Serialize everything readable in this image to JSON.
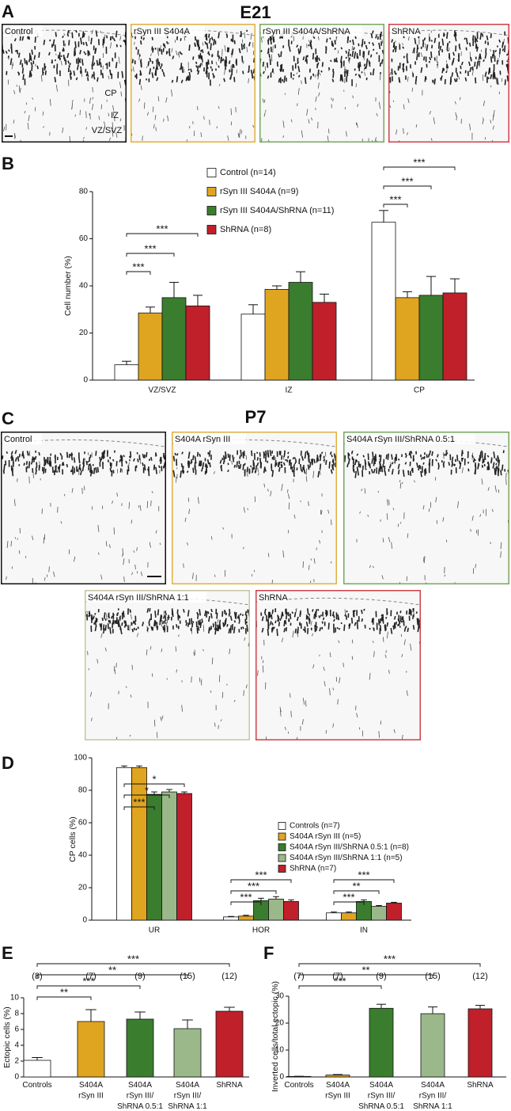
{
  "image_panels": [
    {
      "panel": "A",
      "title": "E21",
      "images": [
        {
          "label": "Control"
        },
        {
          "label": "rSyn III S404A"
        },
        {
          "label": "rSyn III S404A/ShRNA"
        },
        {
          "label": "ShRNA"
        }
      ],
      "region_labels": [
        "CP",
        "IZ",
        "VZ/SVZ"
      ]
    },
    {
      "panel": "C",
      "title": "P7",
      "images": [
        {
          "label": "Control"
        },
        {
          "label": "S404A rSyn III"
        },
        {
          "label": "S404A rSyn III/ShRNA 0.5:1"
        },
        {
          "label": "S404A rSyn III/ShRNA 1:1"
        },
        {
          "label": "ShRNA"
        }
      ]
    }
  ],
  "chart_data": [
    {
      "type": "bar",
      "panel": "B",
      "y_label": "Cell number (%)",
      "categories": [
        "VZ/SVZ",
        "IZ",
        "CP"
      ],
      "series": [
        {
          "name": "Control (n=14)",
          "color": "#ffffff",
          "values": [
            6.5,
            28,
            67
          ],
          "errors": [
            1.5,
            4,
            5
          ]
        },
        {
          "name": "rSyn III S404A (n=9)",
          "color": "#e0a520",
          "values": [
            28.5,
            38.5,
            35
          ],
          "errors": [
            2.5,
            1.5,
            2.5
          ]
        },
        {
          "name": "rSyn III S404A/ShRNA (n=11)",
          "color": "#3a7d2e",
          "values": [
            35,
            41.5,
            36
          ],
          "errors": [
            6.5,
            4.5,
            8
          ]
        },
        {
          "name": "ShRNA (n=8)",
          "color": "#c0202a",
          "values": [
            31.5,
            33,
            37
          ],
          "errors": [
            4.5,
            3.5,
            6
          ]
        }
      ],
      "ylim": [
        0,
        80
      ],
      "yticks": [
        0,
        20,
        40,
        60,
        80
      ],
      "brackets": [
        {
          "label": "***",
          "group": 0,
          "from": 0,
          "to": 1
        },
        {
          "label": "***",
          "group": 0,
          "from": 0,
          "to": 2
        },
        {
          "label": "***",
          "group": 0,
          "from": 0,
          "to": 3
        },
        {
          "label": "***",
          "group": 2,
          "from": 0,
          "to": 1
        },
        {
          "label": "***",
          "group": 2,
          "from": 0,
          "to": 2
        },
        {
          "label": "***",
          "group": 2,
          "from": 0,
          "to": 3
        }
      ]
    },
    {
      "type": "bar",
      "panel": "D",
      "y_label": "CP cells (%)",
      "categories": [
        "UR",
        "HOR",
        "IN"
      ],
      "series": [
        {
          "name": "Controls (n=7)",
          "color": "#ffffff",
          "values": [
            94,
            2,
            4.5
          ],
          "errors": [
            1,
            0.3,
            0.5
          ]
        },
        {
          "name": "S404A rSyn III (n=5)",
          "color": "#e0a520",
          "values": [
            94,
            2.5,
            4.5
          ],
          "errors": [
            1,
            0.5,
            0.5
          ]
        },
        {
          "name": "S404A rSyn III/ShRNA 0.5:1 (n=8)",
          "color": "#3a7d2e",
          "values": [
            77.5,
            12,
            11.5
          ],
          "errors": [
            1.5,
            1.5,
            1
          ]
        },
        {
          "name": "S404A rSyn III/ShRNA 1:1 (n=5)",
          "color": "#9bb88a",
          "values": [
            79,
            13,
            8.5
          ],
          "errors": [
            1.5,
            1.5,
            0.5
          ]
        },
        {
          "name": "ShRNA (n=7)",
          "color": "#c0202a",
          "values": [
            78,
            11.5,
            10.5
          ],
          "errors": [
            1,
            1,
            0.5
          ]
        }
      ],
      "ylim": [
        0,
        100
      ],
      "yticks": [
        0,
        20,
        40,
        60,
        80,
        100
      ],
      "brackets": [
        {
          "label": "***",
          "group": 0,
          "from": 0,
          "to": 2
        },
        {
          "label": "*",
          "group": 0,
          "from": 0,
          "to": 3
        },
        {
          "label": "*",
          "group": 0,
          "from": 0,
          "to": 4
        },
        {
          "label": "***",
          "group": 1,
          "from": 0,
          "to": 2
        },
        {
          "label": "***",
          "group": 1,
          "from": 0,
          "to": 3
        },
        {
          "label": "***",
          "group": 1,
          "from": 0,
          "to": 4
        },
        {
          "label": "***",
          "group": 2,
          "from": 0,
          "to": 2
        },
        {
          "label": "**",
          "group": 2,
          "from": 0,
          "to": 3
        },
        {
          "label": "***",
          "group": 2,
          "from": 0,
          "to": 4
        }
      ]
    },
    {
      "type": "bar",
      "panel": "E",
      "y_label": "Ectopic cells (%)",
      "categories": [
        [
          "Controls"
        ],
        [
          "S404A",
          "rSyn III"
        ],
        [
          "S404A",
          "rSyn III/",
          "ShRNA 0.5:1"
        ],
        [
          "S404A",
          "rSyn III/",
          "ShRNA 1:1"
        ],
        [
          "ShRNA"
        ]
      ],
      "n_labels": [
        "(8)",
        "(7)",
        "(9)",
        "(15)",
        "(12)"
      ],
      "colors": [
        "#ffffff",
        "#e0a520",
        "#3a7d2e",
        "#9bb88a",
        "#c0202a"
      ],
      "values": [
        2.1,
        7,
        7.3,
        6.1,
        8.3
      ],
      "errors": [
        0.35,
        1.5,
        0.9,
        1.1,
        0.5
      ],
      "ylim": [
        0,
        10
      ],
      "yticks": [
        0,
        2,
        4,
        6,
        8,
        10
      ],
      "brackets": [
        {
          "label": "**",
          "from": 0,
          "to": 1
        },
        {
          "label": "***",
          "from": 0,
          "to": 2
        },
        {
          "label": "**",
          "from": 0,
          "to": 3
        },
        {
          "label": "***",
          "from": 0,
          "to": 4
        }
      ]
    },
    {
      "type": "bar",
      "panel": "F",
      "y_label": "Inverted cells/total ectopic (%)",
      "categories": [
        [
          "Controls"
        ],
        [
          "S404A",
          "rSyn III"
        ],
        [
          "S404A",
          "rSyn III/",
          "ShRNA 0.5:1"
        ],
        [
          "S404A",
          "rSyn III/",
          "ShRNA 1:1"
        ],
        [
          "ShRNA"
        ]
      ],
      "n_labels": [
        "(7)",
        "(7)",
        "(9)",
        "(15)",
        "(12)"
      ],
      "colors": [
        "#ffffff",
        "#e0a520",
        "#3a7d2e",
        "#9bb88a",
        "#c0202a"
      ],
      "values": [
        0.2,
        0.7,
        25.5,
        23.5,
        25.3
      ],
      "errors": [
        0.05,
        0.2,
        1.5,
        2.5,
        1.3
      ],
      "ylim": [
        0,
        30
      ],
      "yticks": [
        0,
        10,
        20,
        30
      ],
      "brackets": [
        {
          "label": "***",
          "from": 0,
          "to": 2
        },
        {
          "label": "**",
          "from": 0,
          "to": 3
        },
        {
          "label": "***",
          "from": 0,
          "to": 4
        }
      ]
    }
  ]
}
